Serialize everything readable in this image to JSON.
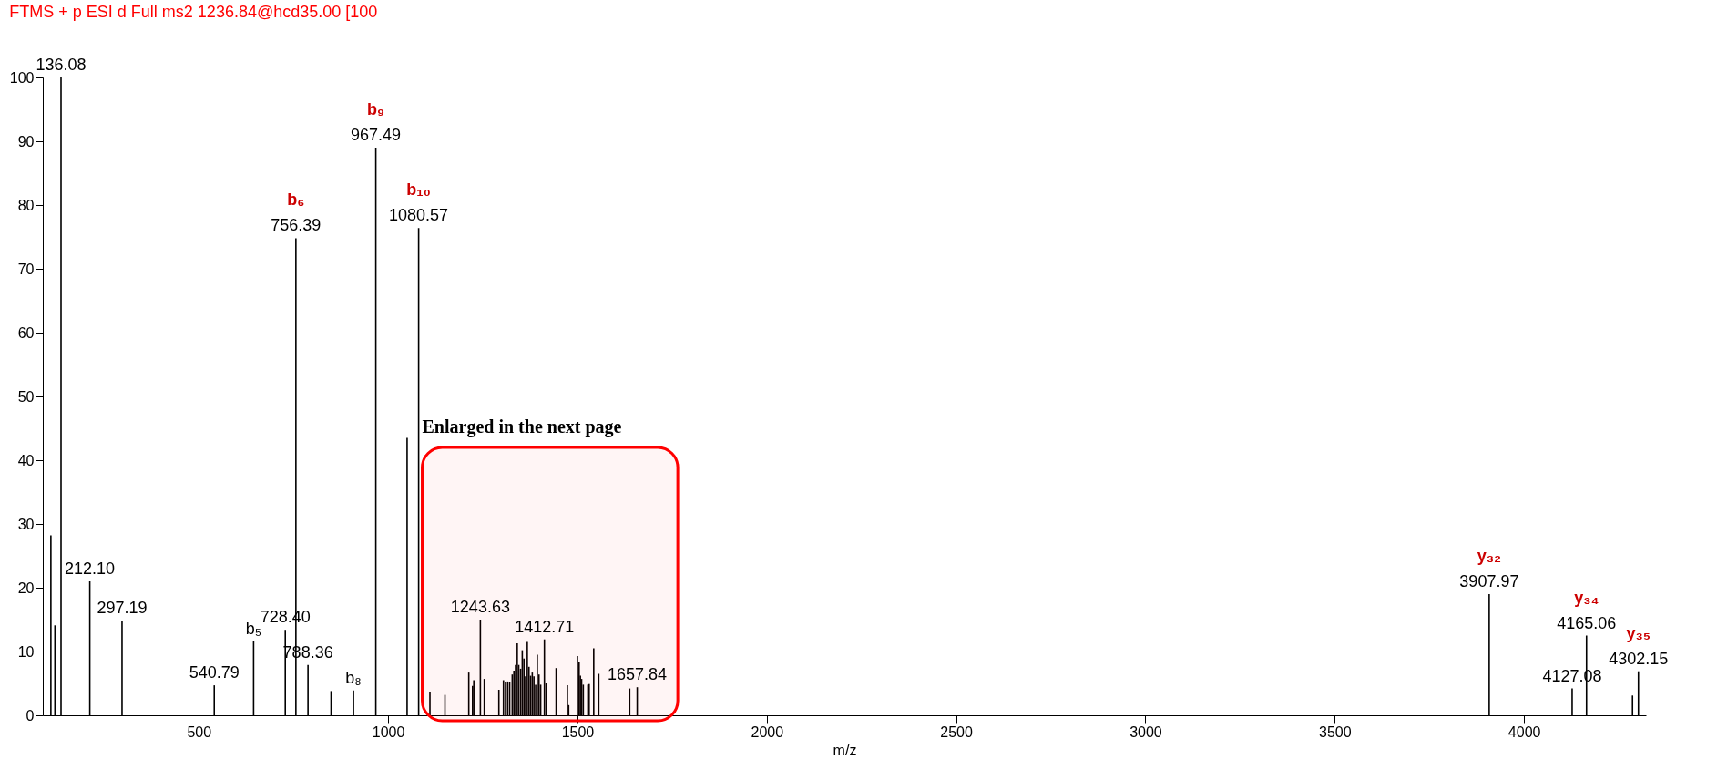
{
  "chart_data": {
    "type": "bar",
    "title": "FTMS + p ESI d Full ms2 1236.84@hcd35.00 [100",
    "xlabel": "m/z",
    "color": "#000000",
    "x": [
      109.3,
      120,
      136.08,
      212.1,
      297.19,
      540.79,
      644.7,
      728.4,
      756.39,
      788.36,
      849.3,
      908.5,
      967.49,
      1050.1,
      1080.57,
      1110.4,
      1150.1,
      1213,
      1223,
      1226.3,
      1243.63,
      1253.9,
      1292.5,
      1304.6,
      1310,
      1315.7,
      1321,
      1327.8,
      1332.2,
      1336.6,
      1341,
      1345,
      1349.9,
      1354.3,
      1358.7,
      1363,
      1367.5,
      1372,
      1376.3,
      1380.7,
      1385,
      1389.6,
      1394,
      1398.4,
      1402.9,
      1412.71,
      1417.2,
      1443.7,
      1473.5,
      1476.8,
      1500,
      1504.4,
      1507.7,
      1511,
      1515.4,
      1527.6,
      1530.9,
      1543,
      1556.3,
      1638,
      1657.84,
      3907.97,
      4127.08,
      4165.06,
      4286.5,
      4302.15
    ],
    "values": [
      28.2,
      14.1,
      100,
      21.0,
      14.8,
      4.7,
      11.6,
      13.4,
      74.8,
      7.9,
      3.8,
      3.9,
      89.0,
      43.5,
      76.4,
      3.7,
      3.2,
      6.7,
      4.6,
      5.5,
      15.0,
      5.7,
      4.0,
      5.5,
      5.3,
      5.3,
      5.3,
      6.4,
      7.0,
      7.9,
      11.3,
      7.9,
      7.3,
      10.2,
      8.9,
      6.1,
      11.5,
      7.6,
      6.2,
      6.7,
      6.1,
      4.8,
      9.5,
      6.4,
      4.8,
      11.9,
      5.1,
      7.4,
      4.7,
      1.6,
      9.3,
      8.4,
      6.2,
      5.7,
      4.8,
      4.8,
      4.9,
      10.5,
      6.5,
      4.2,
      4.4,
      19.0,
      4.2,
      12.5,
      3.1,
      6.9
    ],
    "xlim": [
      100,
      4310
    ],
    "xticks": [
      500,
      1000,
      1500,
      2000,
      2500,
      3000,
      3500,
      4000
    ],
    "ylim": [
      0,
      100
    ],
    "yticks": [
      0,
      10,
      20,
      30,
      40,
      50,
      60,
      70,
      80,
      90,
      100
    ],
    "annotations": [
      {
        "text": "136.08",
        "x": 136.08,
        "y": 100
      },
      {
        "text": "212.10",
        "x": 212.1,
        "y": 21.0
      },
      {
        "text": "297.19",
        "x": 297.19,
        "y": 14.8
      },
      {
        "text": "540.79",
        "x": 540.79,
        "y": 4.7
      },
      {
        "text": "b₅",
        "x": 644.7,
        "y": 11.6
      },
      {
        "text": "728.40",
        "x": 728.4,
        "y": 13.4
      },
      {
        "text": "756.39",
        "x": 756.39,
        "y": 74.8
      },
      {
        "text": "b₆",
        "x": 756.39,
        "y": 74.8
      },
      {
        "text": "788.36",
        "x": 788.36,
        "y": 7.9
      },
      {
        "text": "b₈",
        "x": 908.5,
        "y": 3.9
      },
      {
        "text": "967.49",
        "x": 967.49,
        "y": 89.0
      },
      {
        "text": "b₉",
        "x": 967.49,
        "y": 89.0
      },
      {
        "text": "1080.57",
        "x": 1080.57,
        "y": 76.4
      },
      {
        "text": "b₁₀",
        "x": 1080.57,
        "y": 76.4
      },
      {
        "text": "1243.63",
        "x": 1243.63,
        "y": 15.0
      },
      {
        "text": "1412.71",
        "x": 1412.71,
        "y": 11.9
      },
      {
        "text": "1657.84",
        "x": 1657.84,
        "y": 4.4
      },
      {
        "text": "3907.97",
        "x": 3907.97,
        "y": 19.0
      },
      {
        "text": "y₃₂",
        "x": 3907.97,
        "y": 19.0
      },
      {
        "text": "4127.08",
        "x": 4127.08,
        "y": 4.2
      },
      {
        "text": "4165.06",
        "x": 4165.06,
        "y": 12.5
      },
      {
        "text": "y₃₄",
        "x": 4165.06,
        "y": 12.5
      },
      {
        "text": "4302.15",
        "x": 4302.15,
        "y": 6.9
      },
      {
        "text": "y₃₅",
        "x": 4302.15,
        "y": 6.9
      }
    ],
    "bands": [
      {
        "axis": "x",
        "from": 1090,
        "to": 1765,
        "label": "Enlarged in the next page",
        "color": "#ff0000"
      }
    ],
    "grid": false
  }
}
